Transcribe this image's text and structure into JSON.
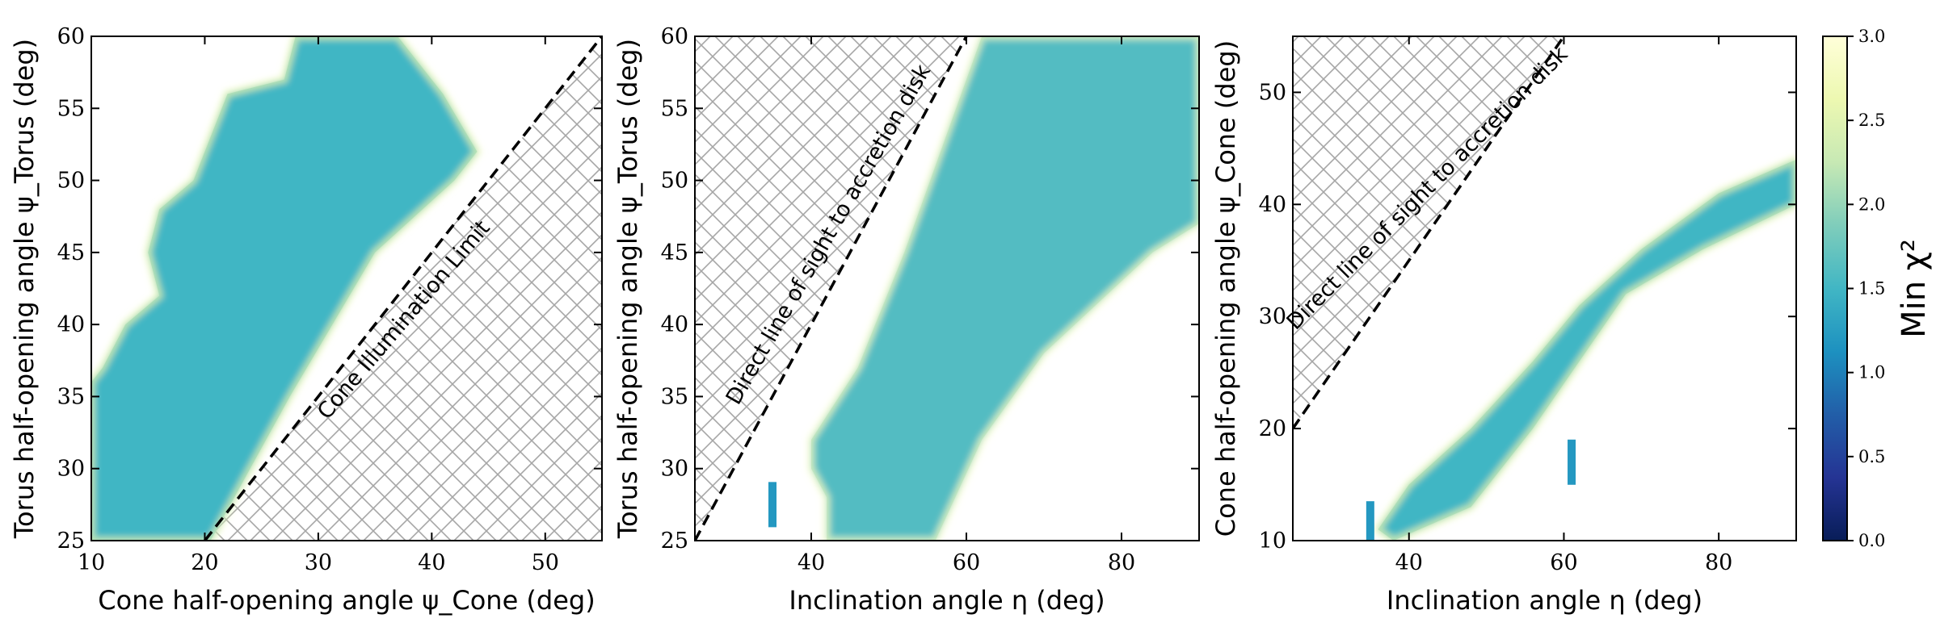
{
  "colors": {
    "colormap": [
      "#081d58",
      "#253494",
      "#225ea8",
      "#1d91c0",
      "#41b6c4",
      "#7fcdbb",
      "#c7e9b4",
      "#edf8b1",
      "#ffffd9"
    ],
    "hatch": "#a6a6a6"
  },
  "colorbar": {
    "label": "Min χ²",
    "range": [
      0.0,
      3.0
    ],
    "ticks": [
      "0.0",
      "0.5",
      "1.0",
      "1.5",
      "2.0",
      "2.5",
      "3.0"
    ]
  },
  "chart_data": [
    {
      "type": "heatmap",
      "title": "",
      "xlabel": "Cone half-opening angle ψ_Cone (deg)",
      "ylabel": "Torus half-opening angle ψ_Torus (deg)",
      "xlim": [
        10,
        55
      ],
      "ylim": [
        25,
        60
      ],
      "xticks": [
        "10",
        "20",
        "30",
        "40",
        "50"
      ],
      "yticks": [
        "25",
        "30",
        "35",
        "40",
        "45",
        "50",
        "55",
        "60"
      ],
      "value_field": "Min χ²",
      "filled_region": [
        [
          10,
          25
        ],
        [
          20.5,
          25
        ],
        [
          27.5,
          35
        ],
        [
          35,
          45
        ],
        [
          42,
          50
        ],
        [
          44,
          52
        ],
        [
          41,
          56
        ],
        [
          37,
          60
        ],
        [
          28,
          60
        ],
        [
          27,
          57
        ],
        [
          22,
          56
        ],
        [
          19,
          50
        ],
        [
          16,
          48
        ],
        [
          15,
          45
        ],
        [
          16,
          42
        ],
        [
          13,
          40
        ],
        [
          11,
          37
        ],
        [
          10,
          36
        ]
      ],
      "filled_region_value_range": [
        1.0,
        2.0
      ],
      "hatched_region": {
        "x": [
          20,
          55
        ],
        "y": [
          25,
          60
        ],
        "boundary": "psi_Torus = psi_Cone + 5"
      },
      "annotations": [
        {
          "text": "Cone Illumination Limit",
          "x": 38,
          "y": 40
        }
      ]
    },
    {
      "type": "heatmap",
      "title": "",
      "xlabel": "Inclination angle η (deg)",
      "ylabel": "Torus half-opening angle ψ_Torus (deg)",
      "xlim": [
        25,
        90
      ],
      "ylim": [
        25,
        60
      ],
      "xticks": [
        "40",
        "60",
        "80"
      ],
      "yticks": [
        "25",
        "30",
        "35",
        "40",
        "45",
        "50",
        "55",
        "60"
      ],
      "value_field": "Min χ²",
      "filled_region": [
        [
          42,
          25
        ],
        [
          56,
          25
        ],
        [
          62,
          32
        ],
        [
          70,
          38
        ],
        [
          78,
          42
        ],
        [
          84,
          45
        ],
        [
          90,
          47
        ],
        [
          90,
          60
        ],
        [
          62,
          60
        ],
        [
          58,
          54
        ],
        [
          52,
          45
        ],
        [
          46,
          37
        ],
        [
          40,
          32
        ],
        [
          40,
          30
        ],
        [
          42,
          28
        ]
      ],
      "filled_region_value_range": [
        1.0,
        2.2
      ],
      "isolated_points": [
        {
          "x": 35,
          "y": 27.5
        }
      ],
      "hatched_region": {
        "x": [
          25,
          60
        ],
        "y": [
          25,
          60
        ],
        "boundary": "psi_Torus = eta"
      },
      "annotations": [
        {
          "text": "Direct line of sight to accretion disk",
          "x": 43,
          "y": 46
        }
      ]
    },
    {
      "type": "heatmap",
      "title": "",
      "xlabel": "Inclination angle η (deg)",
      "ylabel": "Cone half-opening angle ψ_Cone (deg)",
      "xlim": [
        25,
        90
      ],
      "ylim": [
        10,
        55
      ],
      "xticks": [
        "40",
        "60",
        "80"
      ],
      "yticks": [
        "10",
        "20",
        "30",
        "40",
        "50"
      ],
      "value_field": "Min χ²",
      "filled_region": [
        [
          38,
          10
        ],
        [
          48,
          13
        ],
        [
          56,
          20
        ],
        [
          61,
          25
        ],
        [
          68,
          32
        ],
        [
          78,
          36
        ],
        [
          90,
          40
        ],
        [
          90,
          44
        ],
        [
          80,
          41
        ],
        [
          70,
          36
        ],
        [
          62,
          31
        ],
        [
          56,
          26
        ],
        [
          48,
          20
        ],
        [
          40,
          15
        ],
        [
          36,
          11
        ]
      ],
      "filled_region_value_range": [
        1.0,
        2.0
      ],
      "isolated_points": [
        {
          "x": 35,
          "y": 11.5
        },
        {
          "x": 61,
          "y": 17
        }
      ],
      "hatched_region": {
        "x": [
          25,
          60
        ],
        "y": [
          20,
          55
        ],
        "boundary": "psi_Cone = eta - 5"
      },
      "annotations": [
        {
          "text": "Direct line of sight to accretion disk",
          "x": 43,
          "y": 41
        }
      ]
    }
  ]
}
